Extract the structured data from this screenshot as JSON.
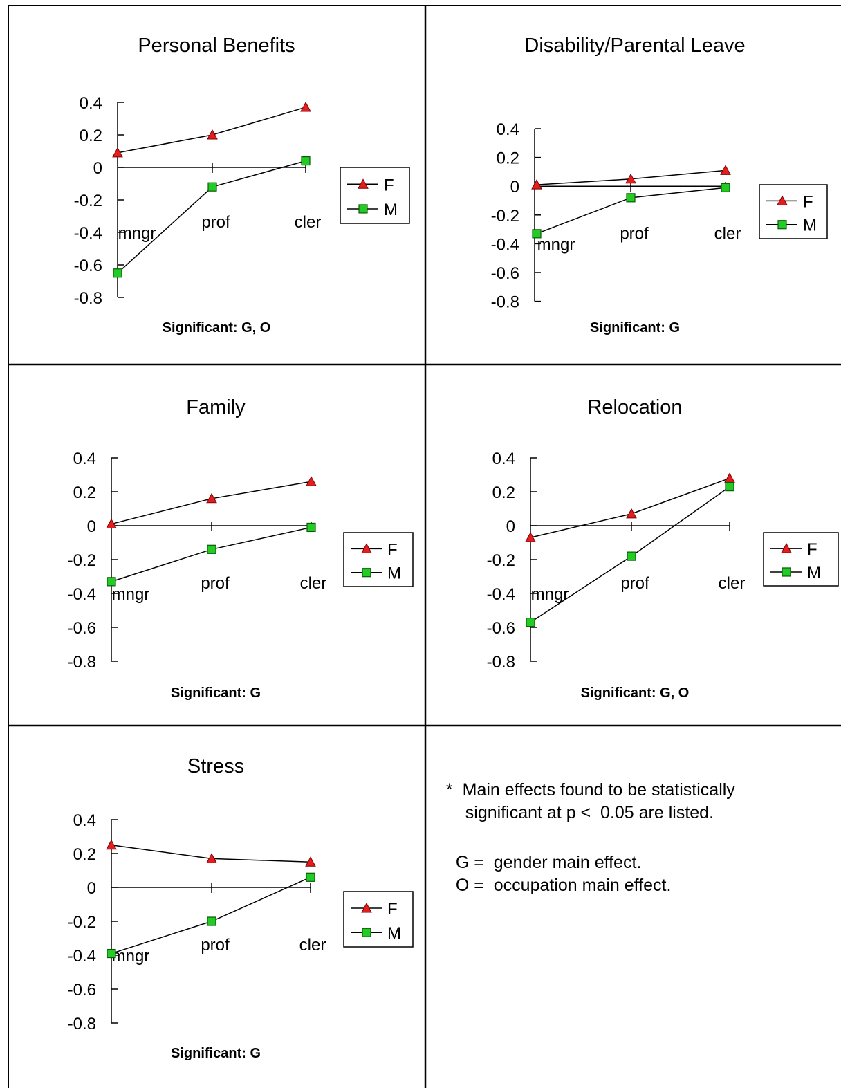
{
  "chart_data": [
    {
      "type": "line",
      "title": "Personal Benefits",
      "categories": [
        "mngr",
        "prof",
        "cler"
      ],
      "yticks": [
        "0.4",
        "0.2",
        "0",
        "-0.2",
        "-0.4",
        "-0.6",
        "-0.8"
      ],
      "ylim": [
        -0.8,
        0.4
      ],
      "series": [
        {
          "name": "F",
          "values": [
            0.09,
            0.2,
            0.37
          ]
        },
        {
          "name": "M",
          "values": [
            -0.65,
            -0.12,
            0.04
          ]
        }
      ],
      "note": "Significant:  G, O"
    },
    {
      "type": "line",
      "title": "Disability/Parental Leave",
      "categories": [
        "mngr",
        "prof",
        "cler"
      ],
      "yticks": [
        "0.4",
        "0.2",
        "0",
        "-0.2",
        "-0.4",
        "-0.6",
        "-0.8"
      ],
      "ylim": [
        -0.8,
        0.4
      ],
      "series": [
        {
          "name": "F",
          "values": [
            0.01,
            0.05,
            0.11
          ]
        },
        {
          "name": "M",
          "values": [
            -0.33,
            -0.08,
            -0.01
          ]
        }
      ],
      "note": "Significant:  G"
    },
    {
      "type": "line",
      "title": "Family",
      "categories": [
        "mngr",
        "prof",
        "cler"
      ],
      "yticks": [
        "0.4",
        "0.2",
        "0",
        "-0.2",
        "-0.4",
        "-0.6",
        "-0.8"
      ],
      "ylim": [
        -0.8,
        0.4
      ],
      "series": [
        {
          "name": "F",
          "values": [
            0.01,
            0.16,
            0.26
          ]
        },
        {
          "name": "M",
          "values": [
            -0.33,
            -0.14,
            -0.01
          ]
        }
      ],
      "note": "Significant:  G"
    },
    {
      "type": "line",
      "title": "Relocation",
      "categories": [
        "mngr",
        "prof",
        "cler"
      ],
      "yticks": [
        "0.4",
        "0.2",
        "0",
        "-0.2",
        "-0.4",
        "-0.6",
        "-0.8"
      ],
      "ylim": [
        -0.8,
        0.4
      ],
      "series": [
        {
          "name": "F",
          "values": [
            -0.07,
            0.07,
            0.28
          ]
        },
        {
          "name": "M",
          "values": [
            -0.57,
            -0.18,
            0.23
          ]
        }
      ],
      "note": "Significant:  G, O"
    },
    {
      "type": "line",
      "title": "Stress",
      "categories": [
        "mngr",
        "prof",
        "cler"
      ],
      "yticks": [
        "0.4",
        "0.2",
        "0",
        "-0.2",
        "-0.4",
        "-0.6",
        "-0.8"
      ],
      "ylim": [
        -0.8,
        0.4
      ],
      "series": [
        {
          "name": "F",
          "values": [
            0.25,
            0.17,
            0.15
          ]
        },
        {
          "name": "M",
          "values": [
            -0.39,
            -0.2,
            0.06
          ]
        }
      ],
      "note": "Significant:  G"
    }
  ],
  "footnotes": {
    "line1": "*  Main effects found to be statistically",
    "line2": "    significant at p <  0.05 are listed.",
    "line3": "  G =  gender main effect.",
    "line4": "  O =  occupation main effect."
  },
  "colors": {
    "female_marker": "#e41e1e",
    "male_marker": "#22cc22",
    "line": "#000000"
  }
}
